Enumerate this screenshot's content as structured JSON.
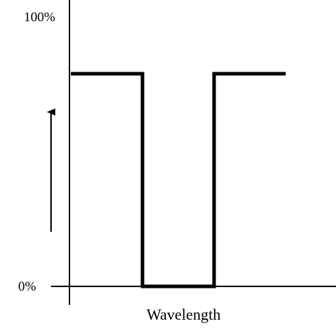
{
  "chart_data": {
    "type": "line",
    "xlabel": "Wavelength",
    "ylabel": "",
    "yticks": [
      {
        "value": 100,
        "label": "100%"
      },
      {
        "value": 0,
        "label": "0%"
      }
    ],
    "ylim": [
      0,
      100
    ],
    "xlim": [
      0,
      3.75
    ],
    "series": [
      {
        "x": [
          0,
          1,
          1,
          2,
          2,
          3
        ],
        "y": [
          75,
          75,
          0,
          0,
          75,
          75
        ]
      }
    ],
    "annotations": [
      {
        "type": "arrow",
        "direction": "up"
      }
    ],
    "grid": false,
    "line_color": "#000000"
  }
}
